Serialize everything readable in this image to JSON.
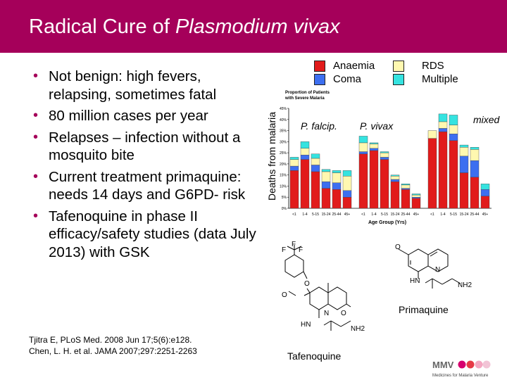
{
  "slide": {
    "title_plain": "Radical Cure of ",
    "title_italic": "Plasmodium vivax",
    "header_color": "#a5005a"
  },
  "bullets": [
    "Not benign: high fevers, relapsing, sometimes fatal",
    "80 million cases per year",
    "Relapses – infection without a mosquito bite",
    "Current treatment primaquine: needs 14 days and G6PD- risk",
    "Tafenoquine in phase II efficacy/safety studies (data July 2013) with GSK"
  ],
  "references": [
    "Tjitra E, PLoS Med. 2008 Jun 17;5(6):e128.",
    "Chen, L. H. et al. JAMA 2007;297:2251-2263"
  ],
  "legend": [
    {
      "label": "Anaemia",
      "color": "#e11b1b"
    },
    {
      "label": "RDS",
      "color": "#fff8b0"
    },
    {
      "label": "Coma",
      "color": "#3d6ff0"
    },
    {
      "label": "Multiple",
      "color": "#35e3e0"
    }
  ],
  "chart_data": {
    "type": "bar",
    "stacked": true,
    "title": "Proportion of Patients with Severe Malaria",
    "ylabel": "Deaths from malaria",
    "xlabel": "Age Group (Yrs)",
    "ylim": [
      0,
      45
    ],
    "yticks": [
      "0%",
      "5%",
      "10%",
      "15%",
      "20%",
      "25%",
      "30%",
      "35%",
      "40%",
      "45%"
    ],
    "categories": [
      "<1",
      "1-4",
      "5-15",
      "15-24",
      "25-44",
      "45+"
    ],
    "groups": [
      {
        "name": "P. falcip.",
        "stacks": [
          {
            "Anaemia": 17,
            "Coma": 2,
            "RDS": 3,
            "Multiple": 1
          },
          {
            "Anaemia": 22,
            "Coma": 2,
            "RDS": 3,
            "Multiple": 3
          },
          {
            "Anaemia": 16.5,
            "Coma": 3,
            "RDS": 3,
            "Multiple": 2
          },
          {
            "Anaemia": 9,
            "Coma": 3,
            "RDS": 4.5,
            "Multiple": 1
          },
          {
            "Anaemia": 8.5,
            "Coma": 3,
            "RDS": 4.5,
            "Multiple": 1
          },
          {
            "Anaemia": 5,
            "Coma": 3,
            "RDS": 6.5,
            "Multiple": 2.5
          }
        ]
      },
      {
        "name": "P. vivax",
        "stacks": [
          {
            "Anaemia": 24.5,
            "Coma": 1,
            "RDS": 4,
            "Multiple": 3
          },
          {
            "Anaemia": 26,
            "Coma": 1,
            "RDS": 2,
            "Multiple": 0.5
          },
          {
            "Anaemia": 22,
            "Coma": 1,
            "RDS": 2,
            "Multiple": 0.5
          },
          {
            "Anaemia": 12,
            "Coma": 1,
            "RDS": 1.5,
            "Multiple": 0.5
          },
          {
            "Anaemia": 8.5,
            "Coma": 0.5,
            "RDS": 1.5,
            "Multiple": 0.5
          },
          {
            "Anaemia": 4.5,
            "Coma": 0.5,
            "RDS": 1,
            "Multiple": 0.5
          }
        ]
      },
      {
        "name": "mixed",
        "stacks": [
          {
            "Anaemia": 31.5,
            "Coma": 0,
            "RDS": 3.5,
            "Multiple": 0
          },
          {
            "Anaemia": 34.5,
            "Coma": 1.5,
            "RDS": 3,
            "Multiple": 3.5
          },
          {
            "Anaemia": 30.5,
            "Coma": 3,
            "RDS": 4,
            "Multiple": 4.5
          },
          {
            "Anaemia": 16,
            "Coma": 7.5,
            "RDS": 4,
            "Multiple": 1
          },
          {
            "Anaemia": 14,
            "Coma": 7.5,
            "RDS": 5,
            "Multiple": 1
          },
          {
            "Anaemia": 5.5,
            "Coma": 3,
            "RDS": 0,
            "Multiple": 2.5
          }
        ]
      }
    ],
    "legend_position": "top-right",
    "grid": false
  },
  "molecules": {
    "primaquine": {
      "label": "Primaquine",
      "atoms": [
        "O",
        "N",
        "HN",
        "NH2"
      ]
    },
    "tafenoquine": {
      "label": "Tafenoquine",
      "atoms": [
        "F",
        "F",
        "F",
        "O",
        "O",
        "N",
        "O",
        "HN",
        "NH2"
      ]
    }
  },
  "logo": {
    "name": "MMV",
    "tagline": "Medicines for Malaria Venture"
  }
}
